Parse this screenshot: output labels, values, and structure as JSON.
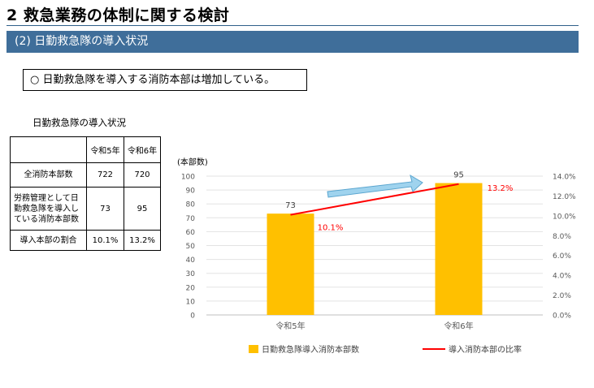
{
  "page": {
    "title": "2 救急業務の体制に関する検討",
    "section": "(2) 日勤救急隊の導入状況",
    "note": "○ 日勤救急隊を導入する消防本部は増加している。"
  },
  "table": {
    "caption": "日勤救急隊の導入状況",
    "headers": [
      "",
      "令和5年",
      "令和6年"
    ],
    "rows": [
      [
        "全消防本部数",
        "722",
        "720"
      ],
      [
        "労務管理として日勤救急隊を導入している消防本部数",
        "73",
        "95"
      ],
      [
        "導入本部の割合",
        "10.1%",
        "13.2%"
      ]
    ]
  },
  "chart_data": {
    "type": "bar",
    "categories": [
      "令和5年",
      "令和6年"
    ],
    "ylabel": "(本部数)",
    "ylim": [
      0,
      100
    ],
    "y_ticks": [
      "0",
      "10",
      "20",
      "30",
      "40",
      "50",
      "60",
      "70",
      "80",
      "90",
      "100"
    ],
    "y2lim": [
      0,
      0.14
    ],
    "y2_ticks": [
      "0.0%",
      "2.0%",
      "4.0%",
      "6.0%",
      "8.0%",
      "10.0%",
      "12.0%",
      "14.0%"
    ],
    "grid": true,
    "legend_position": "bottom",
    "series": [
      {
        "name": "日勤救急隊導入消防本部数",
        "kind": "bar",
        "axis": "left",
        "values": [
          73,
          95
        ],
        "labels": [
          "73",
          "95"
        ],
        "color": "#ffc000"
      },
      {
        "name": "導入消防本部の比率",
        "kind": "line",
        "axis": "right",
        "values": [
          0.101,
          0.132
        ],
        "labels": [
          "10.1%",
          "13.2%"
        ],
        "color": "#ff0000"
      }
    ],
    "arrow_color": "#9fd3ee"
  }
}
